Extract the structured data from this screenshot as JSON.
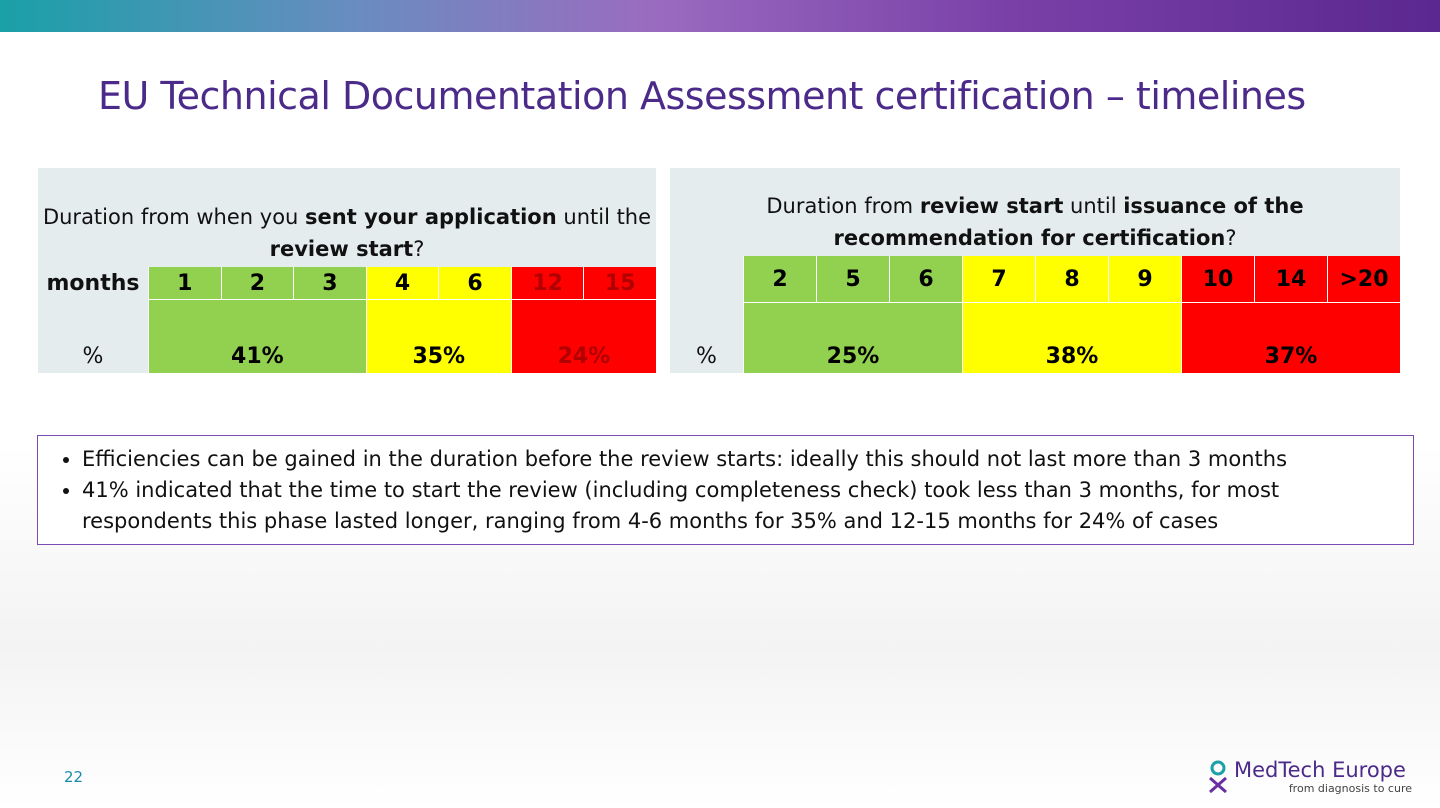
{
  "title": "EU Technical Documentation Assessment certification – timelines",
  "tables": [
    {
      "question": [
        {
          "text": "Duration from when you ",
          "bold": false
        },
        {
          "text": "sent your application",
          "bold": true
        },
        {
          "text": " until the ",
          "bold": false
        },
        {
          "text": "review start",
          "bold": true
        },
        {
          "text": "?",
          "bold": false
        }
      ],
      "header_label": "months",
      "percent_label": "%",
      "groups": [
        {
          "color": "#92d050",
          "text_color": "#000000",
          "cells": [
            "1",
            "2",
            "3"
          ],
          "percent": "41%"
        },
        {
          "color": "#ffff00",
          "text_color": "#000000",
          "cells": [
            "4",
            "6"
          ],
          "percent": "35%"
        },
        {
          "color": "#ff0000",
          "text_color": "#b00000",
          "cells": [
            "12",
            "15"
          ],
          "percent": "24%"
        }
      ]
    },
    {
      "question": [
        {
          "text": "Duration from ",
          "bold": false
        },
        {
          "text": "review start",
          "bold": true
        },
        {
          "text": " until ",
          "bold": false
        },
        {
          "text": "issuance of the recommendation for certification",
          "bold": true
        },
        {
          "text": "?",
          "bold": false
        }
      ],
      "percent_label": "%",
      "groups": [
        {
          "color": "#92d050",
          "text_color": "#000000",
          "cells": [
            "2",
            "5",
            "6"
          ],
          "percent": "25%"
        },
        {
          "color": "#ffff00",
          "text_color": "#000000",
          "cells": [
            "7",
            "8",
            "9"
          ],
          "percent": "38%"
        },
        {
          "color": "#ff0000",
          "text_color": "#000000",
          "cells": [
            "10",
            "14",
            ">20"
          ],
          "percent": "37%"
        }
      ]
    }
  ],
  "bullets": [
    "Efficiencies can be gained in the duration before the review starts: ideally this should not last more than 3 months",
    "41% indicated that the time to start the review (including completeness check) took less than 3 months, for most respondents this phase lasted longer, ranging from 4-6 months for 35% and 12-15 months for 24% of cases"
  ],
  "page_number": "22",
  "logo": {
    "name": "MedTech Europe",
    "tagline": "from diagnosis to cure"
  }
}
